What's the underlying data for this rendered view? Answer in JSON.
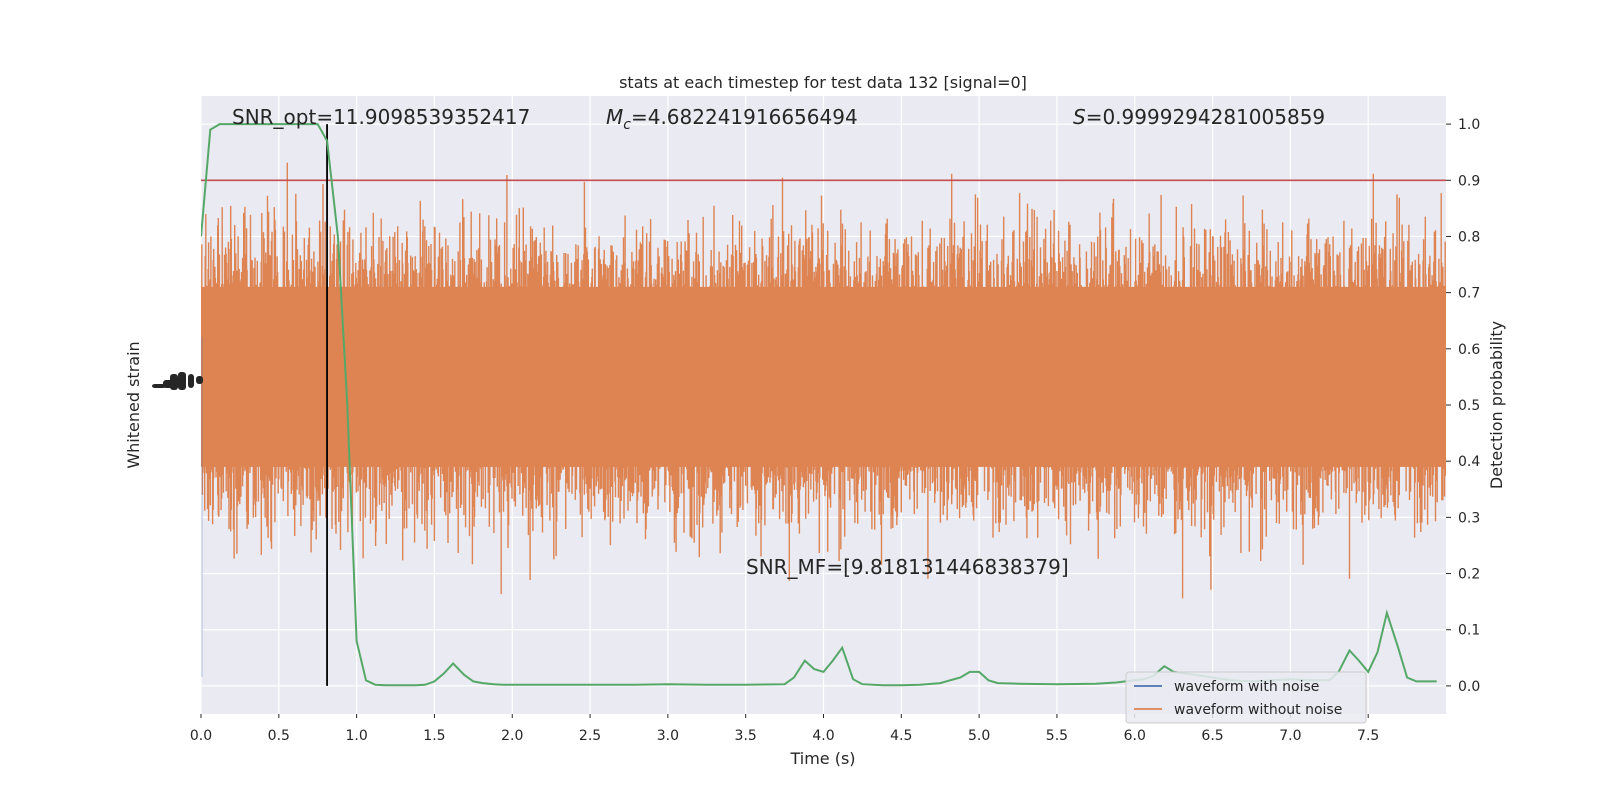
{
  "chart_data": {
    "type": "line",
    "title": "stats at each timestep for test data 132 [signal=0]",
    "xlabel": "Time (s)",
    "ylabel_left": "Whitened strain",
    "ylabel_right": "Detection probability",
    "xlim": [
      0.0,
      8.0
    ],
    "ylim_right": [
      -0.05,
      1.05
    ],
    "x_ticks": [
      "0.0",
      "0.5",
      "1.0",
      "1.5",
      "2.0",
      "2.5",
      "3.0",
      "3.5",
      "4.0",
      "4.5",
      "5.0",
      "5.5",
      "6.0",
      "6.5",
      "7.0",
      "7.5"
    ],
    "y_right_ticks": [
      "0.0",
      "0.1",
      "0.2",
      "0.3",
      "0.4",
      "0.5",
      "0.6",
      "0.7",
      "0.8",
      "0.9",
      "1.0"
    ],
    "annotations": {
      "snr_opt": "SNR_opt=11.9098539352417",
      "mc_symbol": "M",
      "mc_sub": "c",
      "mc_value": "=4.682241916656494",
      "s_symbol": "S",
      "s_value": "=0.9999294281005859",
      "snr_mf": "SNR_MF=[9.818131446838379]"
    },
    "threshold_line": 0.9,
    "vertical_marker_x": 0.81,
    "series": [
      {
        "name": "waveform with noise",
        "color": "#4c72b0"
      },
      {
        "name": "waveform without noise",
        "color": "#dd8452"
      }
    ],
    "detection_probability": {
      "color": "#55a868",
      "x": [
        0.0,
        0.06,
        0.12,
        0.19,
        0.25,
        0.31,
        0.38,
        0.44,
        0.5,
        0.56,
        0.62,
        0.69,
        0.75,
        0.81,
        0.88,
        0.94,
        1.0,
        1.06,
        1.12,
        1.19,
        1.25,
        1.31,
        1.38,
        1.44,
        1.5,
        1.56,
        1.62,
        1.69,
        1.75,
        1.81,
        1.88,
        1.94,
        2.0,
        2.25,
        2.5,
        2.75,
        3.0,
        3.25,
        3.5,
        3.75,
        3.81,
        3.88,
        3.94,
        4.0,
        4.06,
        4.12,
        4.19,
        4.25,
        4.38,
        4.5,
        4.62,
        4.75,
        4.88,
        4.94,
        5.0,
        5.06,
        5.12,
        5.25,
        5.5,
        5.75,
        5.88,
        6.0,
        6.06,
        6.12,
        6.19,
        6.25,
        6.38,
        6.5,
        6.62,
        6.75,
        6.88,
        7.0,
        7.12,
        7.25,
        7.31,
        7.38,
        7.44,
        7.5,
        7.56,
        7.62,
        7.69,
        7.75,
        7.81,
        7.88,
        7.94
      ],
      "y": [
        0.8,
        0.99,
        1.0,
        1.0,
        1.0,
        1.0,
        1.0,
        1.0,
        1.0,
        1.0,
        1.0,
        1.0,
        1.0,
        0.97,
        0.8,
        0.5,
        0.08,
        0.01,
        0.002,
        0.001,
        0.001,
        0.001,
        0.001,
        0.002,
        0.008,
        0.022,
        0.04,
        0.02,
        0.008,
        0.005,
        0.003,
        0.002,
        0.002,
        0.002,
        0.002,
        0.002,
        0.003,
        0.002,
        0.002,
        0.003,
        0.015,
        0.045,
        0.03,
        0.025,
        0.045,
        0.068,
        0.012,
        0.003,
        0.001,
        0.001,
        0.002,
        0.005,
        0.015,
        0.025,
        0.025,
        0.01,
        0.005,
        0.004,
        0.003,
        0.004,
        0.006,
        0.01,
        0.012,
        0.018,
        0.035,
        0.025,
        0.02,
        0.015,
        0.01,
        0.008,
        0.01,
        0.012,
        0.01,
        0.01,
        0.025,
        0.063,
        0.045,
        0.025,
        0.06,
        0.13,
        0.07,
        0.015,
        0.008,
        0.008,
        0.008
      ]
    },
    "legend_position": "lower-right",
    "grid": true
  }
}
